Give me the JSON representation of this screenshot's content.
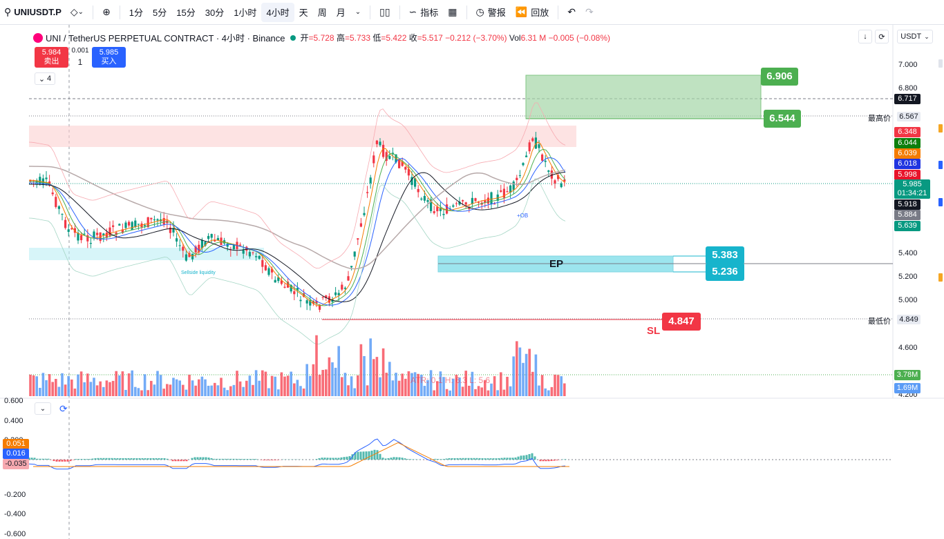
{
  "toolbar": {
    "symbol": "UNIUSDT.P",
    "timeframes": [
      "1分",
      "5分",
      "15分",
      "30分",
      "1小时",
      "4小时",
      "天",
      "周",
      "月"
    ],
    "active_timeframe": "4小时",
    "indicators_label": "指标",
    "alert_label": "警报",
    "replay_label": "回放"
  },
  "legend": {
    "title": "UNI / TetherUS PERPETUAL CONTRACT · 4小时 · Binance",
    "open_label": "开",
    "open": "=5.728",
    "high_label": "高",
    "high": "=5.733",
    "low_label": "低",
    "low": "=5.422",
    "close_label": "收",
    "close": "=5.517",
    "change": "−0.212 (−3.70%)",
    "vol_label": "Vol",
    "vol": "6.31 M",
    "vol_change": "−0.005 (−0.08%)"
  },
  "trade": {
    "sell_price": "5.984",
    "sell_label": "卖出",
    "buy_price": "5.985",
    "buy_label": "买入",
    "qty_step": "0.001",
    "qty": "1"
  },
  "collapse": {
    "count": "4"
  },
  "right_controls": {
    "currency": "USDT"
  },
  "price_axis": {
    "ticks": [
      "7.000",
      "6.800",
      "5.400",
      "5.200",
      "5.000",
      "4.600",
      "4.200"
    ]
  },
  "price_tags": [
    {
      "value": "6.717",
      "color": "#131722"
    },
    {
      "value": "6.348",
      "color": "#f23645"
    },
    {
      "value": "6.044",
      "color": "#0c7f0c"
    },
    {
      "value": "6.039",
      "color": "#f57c00"
    },
    {
      "value": "6.018",
      "color": "#2034e0"
    },
    {
      "value": "5.998",
      "color": "#e8132a"
    },
    {
      "value": "5.918",
      "color": "#131722"
    },
    {
      "value": "5.884",
      "color": "#787b86"
    },
    {
      "value": "5.639",
      "color": "#089981"
    },
    {
      "value": "3.78M",
      "color": "#4caf50"
    },
    {
      "value": "1.69M",
      "color": "#5b9cf6"
    }
  ],
  "current_price": {
    "value": "5.985",
    "countdown": "01:34:21"
  },
  "high_marker": {
    "label": "最高价",
    "value": "6.567"
  },
  "low_marker": {
    "label": "最低价",
    "value": "4.849"
  },
  "levels": {
    "tp1": "6.906",
    "tp2": "6.544",
    "ep_high": "5.383",
    "ep_low": "5.236",
    "ep_label": "EP",
    "sl": "4.847",
    "sl_label": "SL"
  },
  "annotations": {
    "sellside": "Sellside liquidity",
    "ob": "+OB",
    "atr": "ATR: 0.1   H: 6.3   L: 5.6"
  },
  "macd": {
    "ticks": [
      "0.600",
      "0.400",
      "0.200",
      "-0.200",
      "-0.400",
      "-0.600"
    ],
    "tags": [
      {
        "value": "0.051",
        "color": "#f57c00"
      },
      {
        "value": "0.016",
        "color": "#2962ff"
      },
      {
        "value": "-0.035",
        "color": "#f7a9b0"
      }
    ]
  },
  "colors": {
    "up": "#089981",
    "down": "#f23645",
    "tp_zone": "#a5d6a7",
    "ep_zone": "#4dd0e1",
    "supply_zone": "#fbd0d0"
  }
}
